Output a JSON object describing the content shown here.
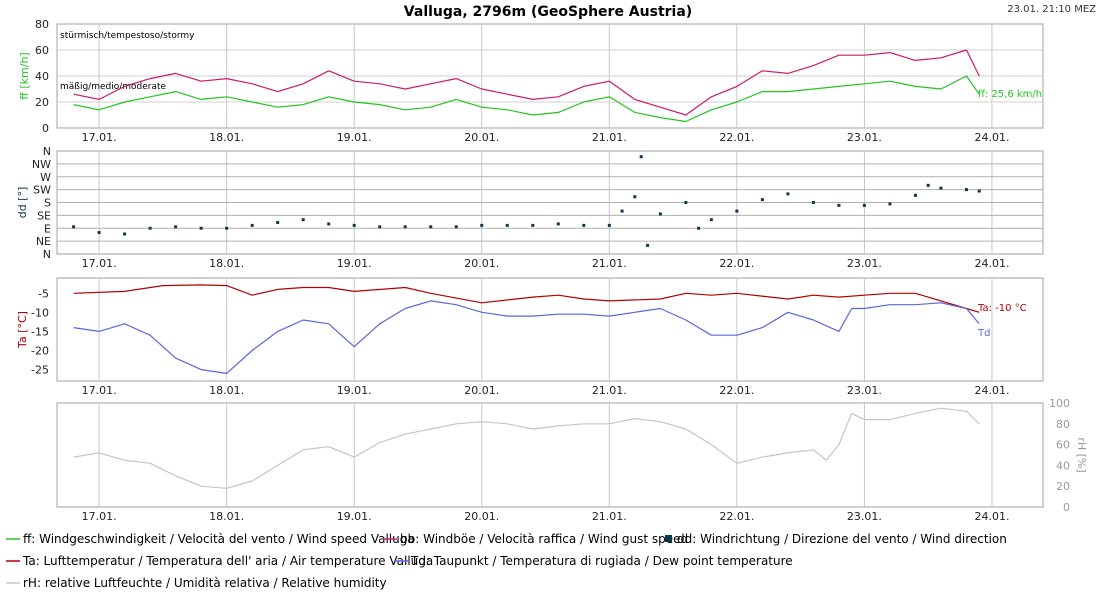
{
  "header": {
    "title": "Valluga, 2796m (GeoSphere Austria)",
    "timestamp": "23.01. 21:10 MEZ"
  },
  "colors": {
    "ff": "#22c422",
    "bb": "#cc1a6a",
    "dd": "#0b3a4a",
    "ta": "#b30000",
    "td": "#5a66e0",
    "rh": "#c4c4cc"
  },
  "chart_data": [
    {
      "type": "line",
      "panel": "wind_speed",
      "ylabel": "ff [km/h]",
      "ylim": [
        0,
        80
      ],
      "yticks": [
        "0",
        "20",
        "40",
        "60",
        "80"
      ],
      "x_tick_labels": [
        "17.01.",
        "18.01.",
        "19.01.",
        "20.01.",
        "21.01.",
        "22.01.",
        "23.01.",
        "24.01."
      ],
      "bands": [
        "stürmisch/tempestoso/stormy",
        "mäßig/medio/moderate"
      ],
      "current_label": "ff: 25,6 km/h",
      "series": [
        {
          "name": "ff",
          "key": "ff",
          "x": [
            16.8,
            17.0,
            17.2,
            17.4,
            17.6,
            17.8,
            18.0,
            18.2,
            18.4,
            18.6,
            18.8,
            19.0,
            19.2,
            19.4,
            19.6,
            19.8,
            20.0,
            20.2,
            20.4,
            20.6,
            20.8,
            21.0,
            21.2,
            21.4,
            21.6,
            21.8,
            22.0,
            22.2,
            22.4,
            22.6,
            22.8,
            23.0,
            23.2,
            23.4,
            23.6,
            23.8,
            23.9
          ],
          "values": [
            18,
            14,
            20,
            24,
            28,
            22,
            24,
            20,
            16,
            18,
            24,
            20,
            18,
            14,
            16,
            22,
            16,
            14,
            10,
            12,
            20,
            24,
            12,
            8,
            5,
            14,
            20,
            28,
            28,
            30,
            32,
            34,
            36,
            32,
            30,
            40,
            26
          ]
        },
        {
          "name": "bb",
          "key": "bb",
          "x": [
            16.8,
            17.0,
            17.2,
            17.4,
            17.6,
            17.8,
            18.0,
            18.2,
            18.4,
            18.6,
            18.8,
            19.0,
            19.2,
            19.4,
            19.6,
            19.8,
            20.0,
            20.2,
            20.4,
            20.6,
            20.8,
            21.0,
            21.2,
            21.4,
            21.6,
            21.8,
            22.0,
            22.2,
            22.4,
            22.6,
            22.8,
            23.0,
            23.2,
            23.4,
            23.6,
            23.8,
            23.9
          ],
          "values": [
            26,
            22,
            32,
            38,
            42,
            36,
            38,
            34,
            28,
            34,
            44,
            36,
            34,
            30,
            34,
            38,
            30,
            26,
            22,
            24,
            32,
            36,
            22,
            16,
            10,
            24,
            32,
            44,
            42,
            48,
            56,
            56,
            58,
            52,
            54,
            60,
            40
          ]
        }
      ]
    },
    {
      "type": "scatter",
      "panel": "wind_direction",
      "ylabel": "dd [°]",
      "ylim": [
        0,
        360
      ],
      "yticks": [
        "N",
        "NE",
        "E",
        "SE",
        "S",
        "SW",
        "W",
        "NW",
        "N"
      ],
      "series": [
        {
          "name": "dd",
          "key": "dd",
          "x": [
            16.8,
            17.0,
            17.2,
            17.4,
            17.6,
            17.8,
            18.0,
            18.2,
            18.4,
            18.6,
            18.8,
            19.0,
            19.2,
            19.4,
            19.6,
            19.8,
            20.0,
            20.2,
            20.4,
            20.6,
            20.8,
            21.0,
            21.1,
            21.2,
            21.25,
            21.3,
            21.4,
            21.6,
            21.7,
            21.8,
            22.0,
            22.2,
            22.4,
            22.6,
            22.8,
            23.0,
            23.2,
            23.4,
            23.5,
            23.6,
            23.8,
            23.9
          ],
          "values": [
            95,
            75,
            70,
            90,
            95,
            90,
            90,
            100,
            110,
            120,
            105,
            100,
            95,
            95,
            95,
            95,
            100,
            100,
            100,
            105,
            100,
            100,
            150,
            200,
            340,
            30,
            140,
            180,
            90,
            120,
            150,
            190,
            210,
            180,
            170,
            170,
            175,
            205,
            240,
            230,
            225,
            220
          ]
        }
      ]
    },
    {
      "type": "line",
      "panel": "temperature",
      "ylabel": "Ta [°C]",
      "ylim": [
        -28,
        -1
      ],
      "yticks": [
        "-5",
        "-10",
        "-15",
        "-20",
        "-25"
      ],
      "current_label_ta": "Ta: -10 °C",
      "current_label_td": "Td",
      "series": [
        {
          "name": "Ta",
          "key": "ta",
          "x": [
            16.8,
            17.2,
            17.5,
            17.8,
            18.0,
            18.2,
            18.4,
            18.6,
            18.8,
            19.0,
            19.4,
            19.6,
            20.0,
            20.4,
            20.6,
            20.8,
            21.0,
            21.4,
            21.6,
            21.8,
            22.0,
            22.4,
            22.6,
            22.8,
            23.0,
            23.2,
            23.4,
            23.6,
            23.8,
            23.9
          ],
          "values": [
            -5,
            -4.5,
            -3,
            -2.8,
            -3,
            -5.5,
            -4,
            -3.5,
            -3.5,
            -4.5,
            -3.5,
            -5,
            -7.5,
            -6,
            -5.5,
            -6.5,
            -7,
            -6.5,
            -5,
            -5.5,
            -5,
            -6.5,
            -5.5,
            -6,
            -5.5,
            -5,
            -5,
            -7,
            -9,
            -10
          ]
        },
        {
          "name": "Td",
          "key": "td",
          "x": [
            16.8,
            17.0,
            17.2,
            17.4,
            17.6,
            17.8,
            18.0,
            18.2,
            18.4,
            18.6,
            18.8,
            19.0,
            19.2,
            19.4,
            19.6,
            19.8,
            20.0,
            20.2,
            20.4,
            20.6,
            20.8,
            21.0,
            21.2,
            21.4,
            21.6,
            21.8,
            22.0,
            22.2,
            22.4,
            22.6,
            22.8,
            22.9,
            23.0,
            23.2,
            23.4,
            23.6,
            23.8,
            23.9
          ],
          "values": [
            -14,
            -15,
            -13,
            -16,
            -22,
            -25,
            -26,
            -20,
            -15,
            -12,
            -13,
            -19,
            -13,
            -9,
            -7,
            -8,
            -10,
            -11,
            -11,
            -10.5,
            -10.5,
            -11,
            -10,
            -9,
            -12,
            -16,
            -16,
            -14,
            -10,
            -12,
            -15,
            -9,
            -9,
            -8,
            -8,
            -7.5,
            -9,
            -13
          ]
        }
      ]
    },
    {
      "type": "line",
      "panel": "humidity",
      "ylabel": "rH [%]",
      "ylim": [
        0,
        100
      ],
      "yticks": [
        "0",
        "20",
        "40",
        "60",
        "80",
        "100"
      ],
      "series": [
        {
          "name": "rH",
          "key": "rh",
          "x": [
            16.8,
            17.0,
            17.2,
            17.4,
            17.6,
            17.8,
            18.0,
            18.2,
            18.4,
            18.6,
            18.8,
            19.0,
            19.2,
            19.4,
            19.6,
            19.8,
            20.0,
            20.2,
            20.4,
            20.6,
            20.8,
            21.0,
            21.2,
            21.4,
            21.6,
            21.8,
            22.0,
            22.2,
            22.4,
            22.6,
            22.7,
            22.8,
            22.9,
            23.0,
            23.2,
            23.4,
            23.6,
            23.8,
            23.9
          ],
          "values": [
            48,
            52,
            45,
            42,
            30,
            20,
            18,
            25,
            40,
            55,
            58,
            48,
            62,
            70,
            75,
            80,
            82,
            80,
            75,
            78,
            80,
            80,
            85,
            82,
            75,
            60,
            42,
            48,
            52,
            55,
            45,
            60,
            90,
            84,
            84,
            90,
            95,
            92,
            80
          ]
        }
      ]
    }
  ],
  "legend": [
    {
      "key": "ff",
      "marker": "line",
      "text": "ff: Windgeschwindigkeit / Velocità del vento / Wind speed  Valluga"
    },
    {
      "key": "bb",
      "marker": "line",
      "text": "bb: Windböe / Velocità raffica / Wind gust speed"
    },
    {
      "key": "dd",
      "marker": "square",
      "text": "dd: Windrichtung / Direzione del vento / Wind direction"
    },
    {
      "key": "ta",
      "marker": "line",
      "text": "Ta: Lufttemperatur / Temperatura dell' aria / Air temperature  Valluga"
    },
    {
      "key": "td",
      "marker": "line",
      "text": "Td: Taupunkt / Temperatura di rugiada / Dew point temperature"
    },
    {
      "key": "rh",
      "marker": "line",
      "text": "rH: relative Luftfeuchte / Umidità relativa / Relative humidity"
    }
  ]
}
